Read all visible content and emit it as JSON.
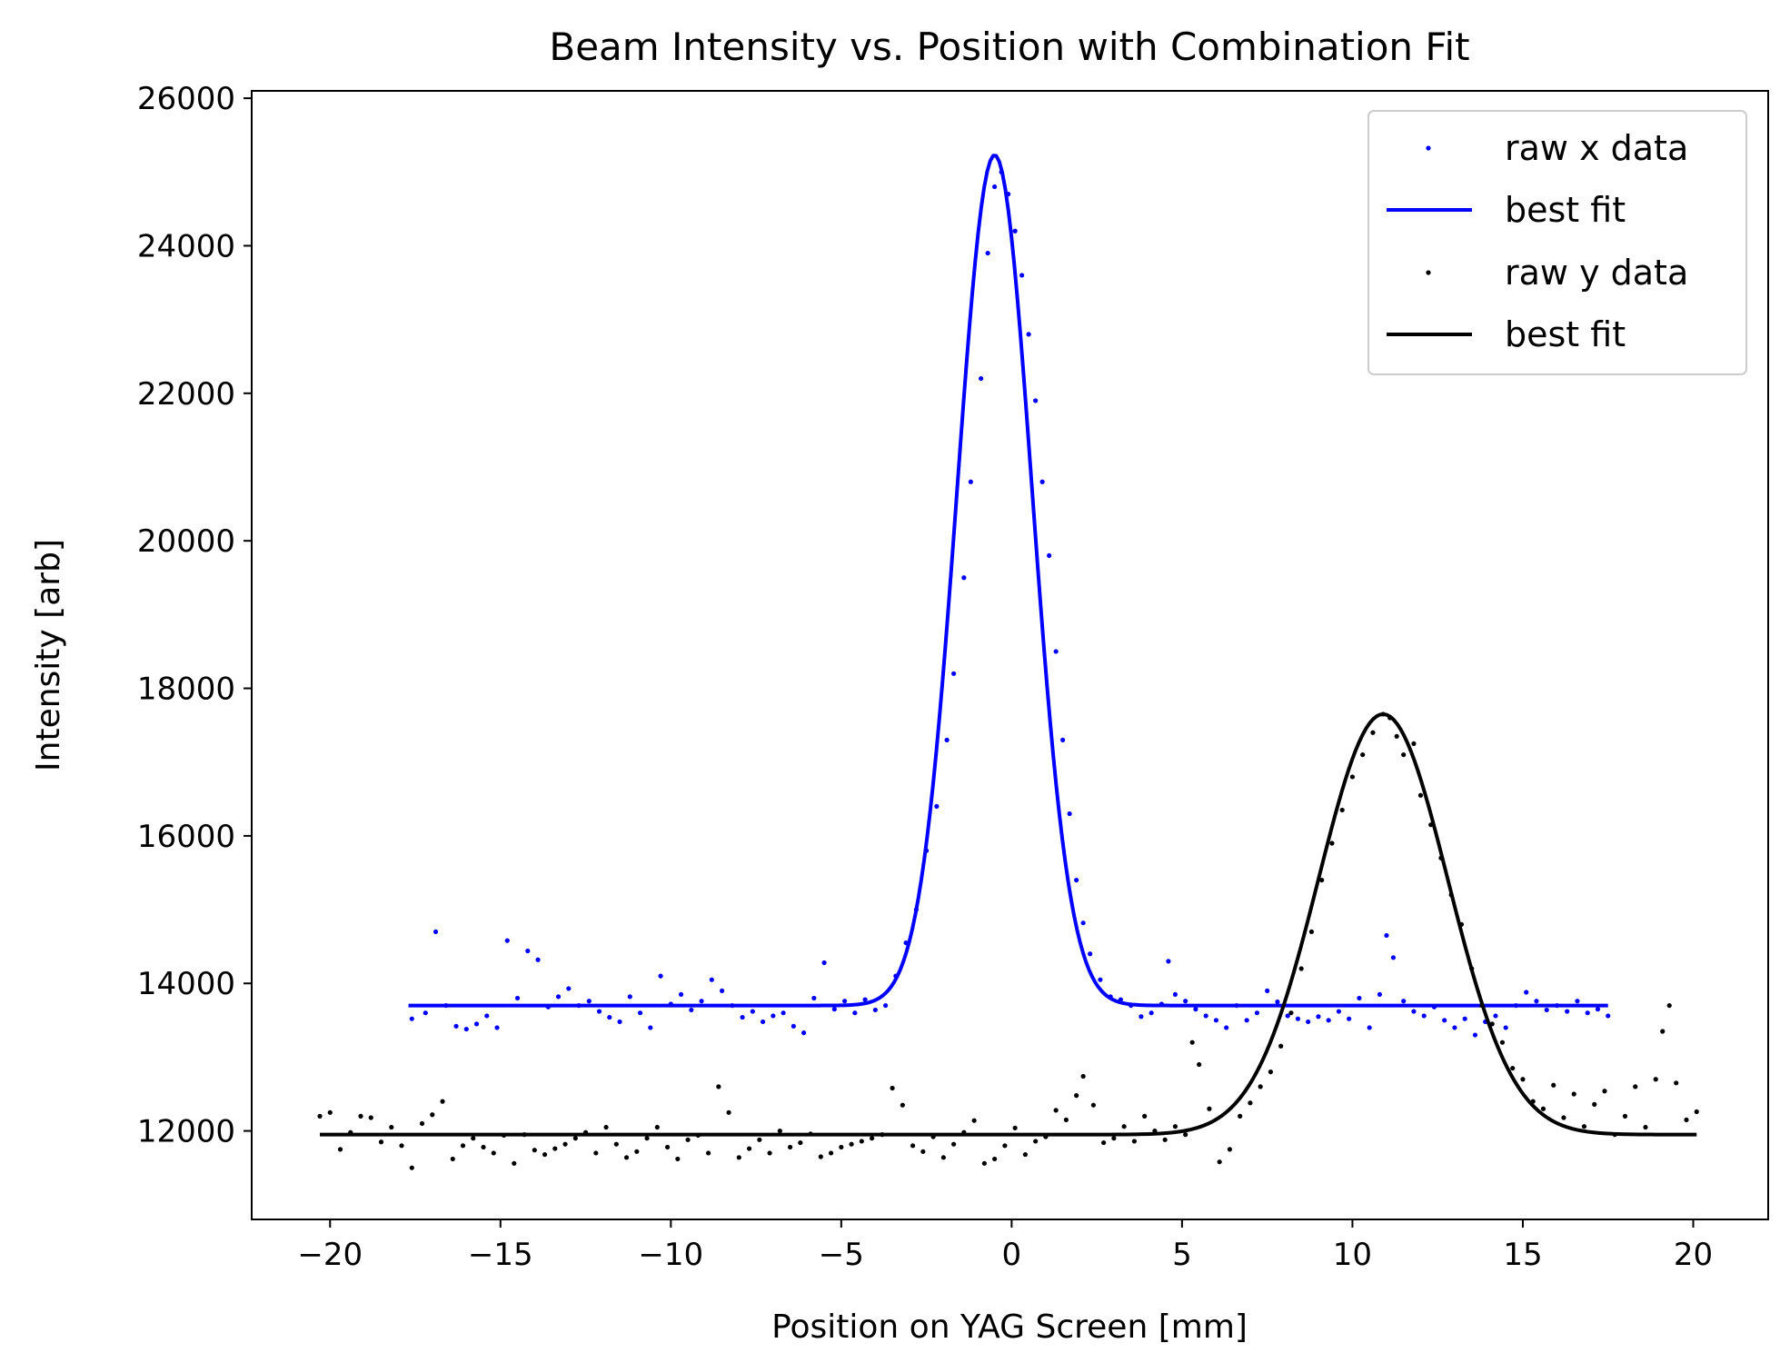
{
  "chart_data": {
    "type": "scatter",
    "title": "Beam Intensity vs. Position with Combination Fit",
    "xlabel": "Position on YAG Screen [mm]",
    "ylabel": "Intensity [arb]",
    "xlim": [
      -22.3,
      22.2
    ],
    "ylim": [
      10800,
      26100
    ],
    "x_ticks": [
      -20,
      -15,
      -10,
      -5,
      0,
      5,
      10,
      15,
      20
    ],
    "x_tick_labels": [
      "−20",
      "−15",
      "−10",
      "−5",
      "0",
      "5",
      "10",
      "15",
      "20"
    ],
    "y_ticks": [
      12000,
      14000,
      16000,
      18000,
      20000,
      22000,
      24000,
      26000
    ],
    "y_tick_labels": [
      "12000",
      "14000",
      "16000",
      "18000",
      "20000",
      "22000",
      "24000",
      "26000"
    ],
    "grid": false,
    "legend_position": "top-right",
    "colors": {
      "x_series": "#0000ff",
      "y_series": "#000000"
    },
    "series": [
      {
        "name": "raw x data",
        "kind": "points",
        "color": "#0000ff",
        "points": [
          [
            -17.6,
            13520
          ],
          [
            -17.2,
            13600
          ],
          [
            -16.9,
            14700
          ],
          [
            -16.6,
            13700
          ],
          [
            -16.3,
            13420
          ],
          [
            -16.0,
            13380
          ],
          [
            -15.7,
            13450
          ],
          [
            -15.4,
            13560
          ],
          [
            -15.1,
            13400
          ],
          [
            -14.8,
            14580
          ],
          [
            -14.5,
            13800
          ],
          [
            -14.2,
            14440
          ],
          [
            -13.9,
            14320
          ],
          [
            -13.6,
            13680
          ],
          [
            -13.3,
            13820
          ],
          [
            -13.0,
            13930
          ],
          [
            -12.7,
            13700
          ],
          [
            -12.4,
            13760
          ],
          [
            -12.1,
            13620
          ],
          [
            -11.8,
            13540
          ],
          [
            -11.5,
            13480
          ],
          [
            -11.2,
            13820
          ],
          [
            -10.9,
            13600
          ],
          [
            -10.6,
            13400
          ],
          [
            -10.3,
            14100
          ],
          [
            -10.0,
            13720
          ],
          [
            -9.7,
            13850
          ],
          [
            -9.4,
            13640
          ],
          [
            -9.1,
            13760
          ],
          [
            -8.8,
            14050
          ],
          [
            -8.5,
            13900
          ],
          [
            -8.2,
            13700
          ],
          [
            -7.9,
            13540
          ],
          [
            -7.6,
            13620
          ],
          [
            -7.3,
            13480
          ],
          [
            -7.0,
            13560
          ],
          [
            -6.7,
            13600
          ],
          [
            -6.4,
            13420
          ],
          [
            -6.1,
            13330
          ],
          [
            -5.8,
            13800
          ],
          [
            -5.5,
            14280
          ],
          [
            -5.2,
            13650
          ],
          [
            -4.9,
            13760
          ],
          [
            -4.6,
            13600
          ],
          [
            -4.3,
            13780
          ],
          [
            -4.0,
            13640
          ],
          [
            -3.7,
            13700
          ],
          [
            -3.4,
            14100
          ],
          [
            -3.1,
            14550
          ],
          [
            -2.8,
            15000
          ],
          [
            -2.5,
            15800
          ],
          [
            -2.2,
            16400
          ],
          [
            -1.9,
            17300
          ],
          [
            -1.7,
            18200
          ],
          [
            -1.4,
            19500
          ],
          [
            -1.2,
            20800
          ],
          [
            -0.9,
            22200
          ],
          [
            -0.7,
            23900
          ],
          [
            -0.5,
            24800
          ],
          [
            -0.3,
            25000
          ],
          [
            -0.1,
            24700
          ],
          [
            0.1,
            24200
          ],
          [
            0.3,
            23600
          ],
          [
            0.5,
            22800
          ],
          [
            0.7,
            21900
          ],
          [
            0.9,
            20800
          ],
          [
            1.1,
            19800
          ],
          [
            1.3,
            18500
          ],
          [
            1.5,
            17300
          ],
          [
            1.7,
            16300
          ],
          [
            1.9,
            15400
          ],
          [
            2.1,
            14820
          ],
          [
            2.3,
            14400
          ],
          [
            2.6,
            14050
          ],
          [
            2.9,
            13820
          ],
          [
            3.2,
            13780
          ],
          [
            3.5,
            13700
          ],
          [
            3.8,
            13550
          ],
          [
            4.1,
            13600
          ],
          [
            4.4,
            13720
          ],
          [
            4.6,
            14300
          ],
          [
            4.8,
            13850
          ],
          [
            5.1,
            13760
          ],
          [
            5.4,
            13650
          ],
          [
            5.7,
            13560
          ],
          [
            6.0,
            13500
          ],
          [
            6.3,
            13400
          ],
          [
            6.6,
            13700
          ],
          [
            6.9,
            13500
          ],
          [
            7.2,
            13600
          ],
          [
            7.5,
            13900
          ],
          [
            7.8,
            13750
          ],
          [
            8.1,
            13560
          ],
          [
            8.4,
            13520
          ],
          [
            8.7,
            13480
          ],
          [
            9.0,
            13550
          ],
          [
            9.3,
            13500
          ],
          [
            9.6,
            13620
          ],
          [
            9.9,
            13520
          ],
          [
            10.2,
            13800
          ],
          [
            10.5,
            13400
          ],
          [
            10.8,
            13850
          ],
          [
            11.0,
            14650
          ],
          [
            11.2,
            14350
          ],
          [
            11.5,
            13760
          ],
          [
            11.8,
            13620
          ],
          [
            12.1,
            13560
          ],
          [
            12.4,
            13680
          ],
          [
            12.7,
            13500
          ],
          [
            13.0,
            13400
          ],
          [
            13.3,
            13520
          ],
          [
            13.6,
            13300
          ],
          [
            13.9,
            13480
          ],
          [
            14.2,
            13560
          ],
          [
            14.5,
            13400
          ],
          [
            14.8,
            13700
          ],
          [
            15.1,
            13880
          ],
          [
            15.4,
            13760
          ],
          [
            15.7,
            13640
          ],
          [
            16.0,
            13700
          ],
          [
            16.3,
            13620
          ],
          [
            16.6,
            13760
          ],
          [
            16.9,
            13600
          ],
          [
            17.2,
            13650
          ],
          [
            17.5,
            13560
          ]
        ]
      },
      {
        "name": "best fit",
        "kind": "line",
        "color": "#0000ff",
        "model": {
          "baseline": 13700,
          "amplitude": 11530,
          "center": -0.5,
          "sigma": 1.1,
          "x_range": [
            -17.7,
            17.5
          ]
        }
      },
      {
        "name": "raw y data",
        "kind": "points",
        "color": "#000000",
        "points": [
          [
            -20.3,
            12200
          ],
          [
            -20.0,
            12250
          ],
          [
            -19.7,
            11750
          ],
          [
            -19.4,
            11980
          ],
          [
            -19.1,
            12200
          ],
          [
            -18.8,
            12180
          ],
          [
            -18.5,
            11850
          ],
          [
            -18.2,
            12050
          ],
          [
            -17.9,
            11800
          ],
          [
            -17.6,
            11500
          ],
          [
            -17.3,
            12100
          ],
          [
            -17.0,
            12220
          ],
          [
            -16.7,
            12400
          ],
          [
            -16.4,
            11620
          ],
          [
            -16.1,
            11800
          ],
          [
            -15.8,
            11900
          ],
          [
            -15.5,
            11780
          ],
          [
            -15.2,
            11700
          ],
          [
            -14.9,
            11940
          ],
          [
            -14.6,
            11560
          ],
          [
            -14.3,
            11950
          ],
          [
            -14.0,
            11740
          ],
          [
            -13.7,
            11680
          ],
          [
            -13.4,
            11760
          ],
          [
            -13.1,
            11820
          ],
          [
            -12.8,
            11900
          ],
          [
            -12.5,
            11980
          ],
          [
            -12.2,
            11700
          ],
          [
            -11.9,
            12050
          ],
          [
            -11.6,
            11820
          ],
          [
            -11.3,
            11640
          ],
          [
            -11.0,
            11720
          ],
          [
            -10.7,
            11900
          ],
          [
            -10.4,
            12050
          ],
          [
            -10.1,
            11780
          ],
          [
            -9.8,
            11620
          ],
          [
            -9.5,
            11880
          ],
          [
            -9.2,
            11940
          ],
          [
            -8.9,
            11700
          ],
          [
            -8.6,
            12600
          ],
          [
            -8.3,
            12250
          ],
          [
            -8.0,
            11640
          ],
          [
            -7.7,
            11760
          ],
          [
            -7.4,
            11880
          ],
          [
            -7.1,
            11700
          ],
          [
            -6.8,
            12000
          ],
          [
            -6.5,
            11780
          ],
          [
            -6.2,
            11840
          ],
          [
            -5.9,
            11960
          ],
          [
            -5.6,
            11650
          ],
          [
            -5.3,
            11700
          ],
          [
            -5.0,
            11780
          ],
          [
            -4.7,
            11820
          ],
          [
            -4.4,
            11860
          ],
          [
            -4.1,
            11900
          ],
          [
            -3.8,
            11950
          ],
          [
            -3.5,
            12580
          ],
          [
            -3.2,
            12350
          ],
          [
            -2.9,
            11800
          ],
          [
            -2.6,
            11720
          ],
          [
            -2.3,
            11920
          ],
          [
            -2.0,
            11640
          ],
          [
            -1.7,
            11820
          ],
          [
            -1.4,
            11980
          ],
          [
            -1.1,
            12140
          ],
          [
            -0.8,
            11560
          ],
          [
            -0.5,
            11620
          ],
          [
            -0.2,
            11800
          ],
          [
            0.1,
            12040
          ],
          [
            0.4,
            11680
          ],
          [
            0.7,
            11860
          ],
          [
            1.0,
            11920
          ],
          [
            1.3,
            12280
          ],
          [
            1.6,
            12150
          ],
          [
            1.9,
            12480
          ],
          [
            2.1,
            12740
          ],
          [
            2.4,
            12350
          ],
          [
            2.7,
            11840
          ],
          [
            3.0,
            11900
          ],
          [
            3.3,
            12060
          ],
          [
            3.6,
            11860
          ],
          [
            3.9,
            12200
          ],
          [
            4.2,
            12000
          ],
          [
            4.5,
            11880
          ],
          [
            4.8,
            12060
          ],
          [
            5.1,
            11950
          ],
          [
            5.3,
            13200
          ],
          [
            5.5,
            12900
          ],
          [
            5.8,
            12300
          ],
          [
            6.1,
            11580
          ],
          [
            6.4,
            11750
          ],
          [
            6.7,
            12200
          ],
          [
            7.0,
            12380
          ],
          [
            7.3,
            12600
          ],
          [
            7.6,
            12800
          ],
          [
            7.9,
            13150
          ],
          [
            8.2,
            13600
          ],
          [
            8.5,
            14200
          ],
          [
            8.8,
            14700
          ],
          [
            9.1,
            15400
          ],
          [
            9.4,
            15900
          ],
          [
            9.7,
            16350
          ],
          [
            10.0,
            16800
          ],
          [
            10.3,
            17100
          ],
          [
            10.6,
            17400
          ],
          [
            10.9,
            17650
          ],
          [
            11.1,
            17600
          ],
          [
            11.3,
            17350
          ],
          [
            11.5,
            17100
          ],
          [
            11.8,
            17250
          ],
          [
            12.0,
            16550
          ],
          [
            12.3,
            16150
          ],
          [
            12.6,
            15700
          ],
          [
            12.9,
            15200
          ],
          [
            13.2,
            14800
          ],
          [
            13.5,
            14200
          ],
          [
            13.8,
            13700
          ],
          [
            14.1,
            13450
          ],
          [
            14.4,
            13200
          ],
          [
            14.7,
            12850
          ],
          [
            15.0,
            12700
          ],
          [
            15.3,
            12400
          ],
          [
            15.6,
            12300
          ],
          [
            15.9,
            12620
          ],
          [
            16.2,
            12180
          ],
          [
            16.5,
            12500
          ],
          [
            16.8,
            12060
          ],
          [
            17.1,
            12360
          ],
          [
            17.4,
            12540
          ],
          [
            17.7,
            11950
          ],
          [
            18.0,
            12200
          ],
          [
            18.3,
            12600
          ],
          [
            18.6,
            12050
          ],
          [
            18.9,
            12700
          ],
          [
            19.1,
            13350
          ],
          [
            19.3,
            13700
          ],
          [
            19.5,
            12650
          ],
          [
            19.8,
            12150
          ],
          [
            20.1,
            12260
          ]
        ]
      },
      {
        "name": "best fit",
        "kind": "line",
        "color": "#000000",
        "model": {
          "baseline": 11950,
          "amplitude": 5700,
          "center": 10.9,
          "sigma": 1.9,
          "x_range": [
            -20.3,
            20.1
          ]
        }
      }
    ]
  }
}
